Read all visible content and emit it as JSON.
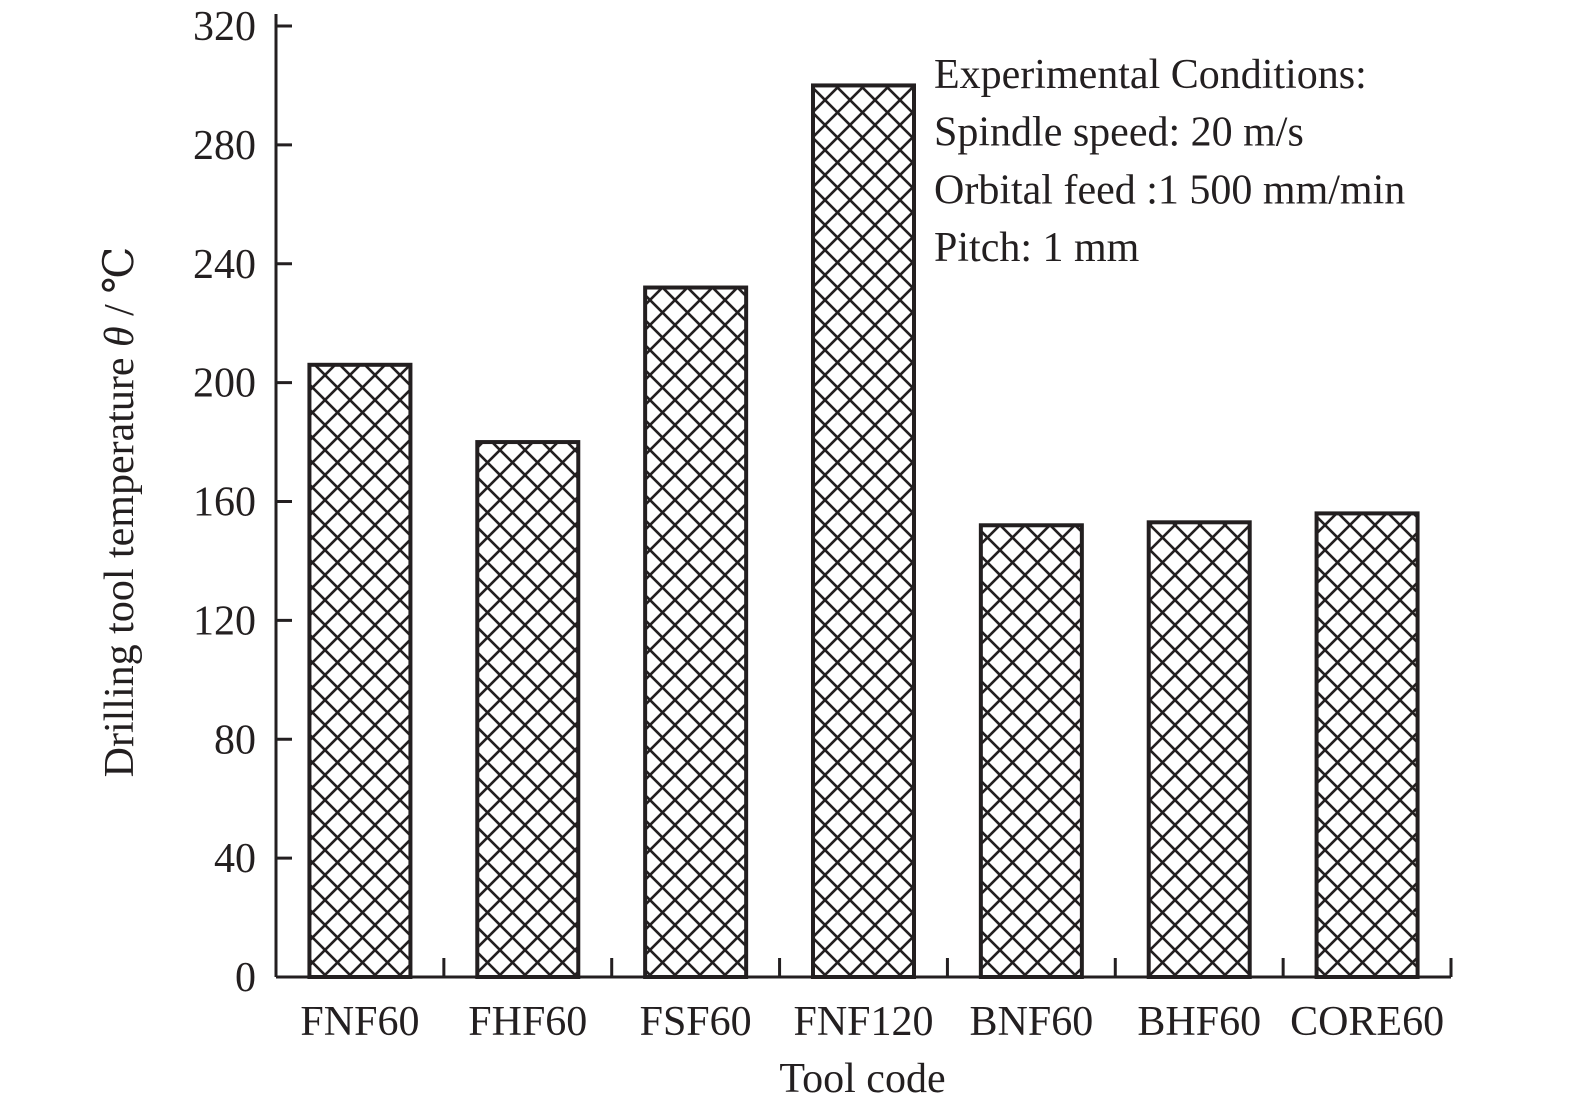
{
  "chart_data": {
    "type": "bar",
    "categories": [
      "FNF60",
      "FHF60",
      "FSF60",
      "FNF120",
      "BNF60",
      "BHF60",
      "CORE60"
    ],
    "values": [
      206,
      180,
      232,
      300,
      152,
      153,
      156
    ],
    "xlabel": "Tool code",
    "ylabel_text": "Drilling tool temperature ",
    "ylabel_symbol": "θ",
    "ylabel_unit": " / ℃",
    "ylim": [
      0,
      320
    ],
    "yticks": [
      "0",
      "40",
      "80",
      "120",
      "160",
      "200",
      "240",
      "280",
      "320"
    ],
    "annotation": [
      "Experimental Conditions:",
      "Spindle speed: 20 m/s",
      "Orbital feed :1 500 mm/min",
      "Pitch: 1 mm"
    ],
    "bar_fill": "crosshatch",
    "colors": {
      "ink": "#231f20",
      "background": "#ffffff"
    },
    "grid": false,
    "legend": "none"
  }
}
